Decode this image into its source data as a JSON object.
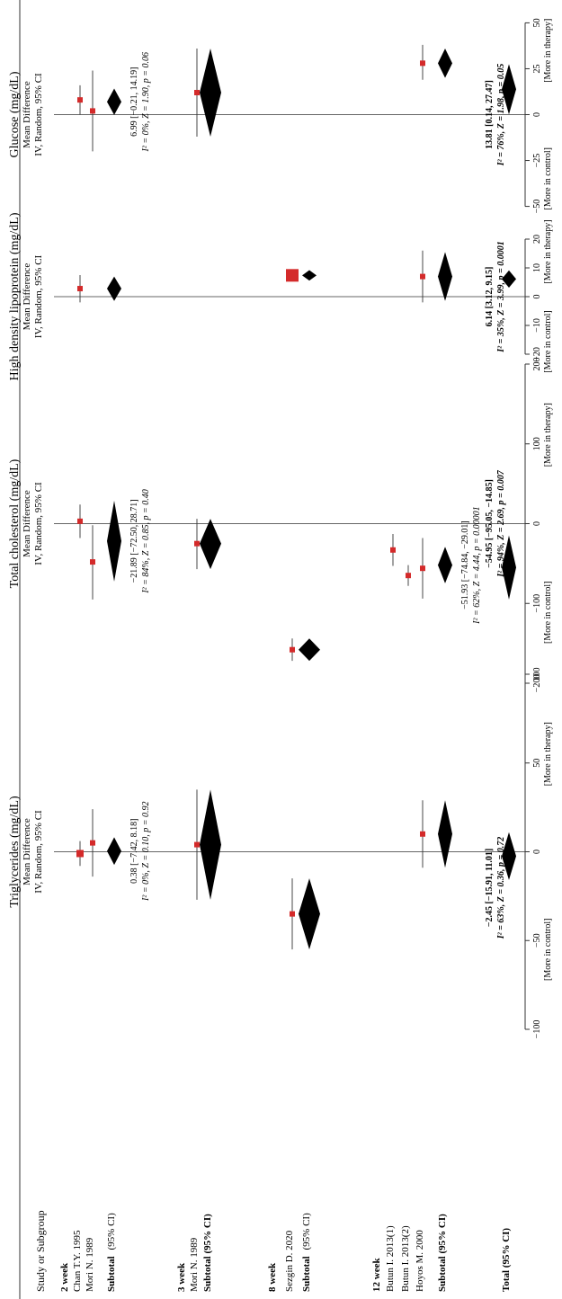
{
  "header": {
    "study_col": "Study or Subgroup"
  },
  "study_labels": {
    "g2_header": "2 week",
    "g2_s1": "Chan T.Y. 1995",
    "g2_s2": "Mori N. 1989",
    "g2_subtotal": "Subtotal",
    "g2_ci": "(95% CI)",
    "g3_header": "3 week",
    "g3_s1": "Mori N. 1989",
    "g3_subtotal": "Subtotal (95% CI)",
    "g8_header": "8 week",
    "g8_s1": "Sezgin D. 2020",
    "g8_subtotal": "Subtotal",
    "g8_ci": "(95% CI)",
    "g12_header": "12 week",
    "g12_s1": "Butun I. 2013(1)",
    "g12_s2": "Butun I. 2013(2)",
    "g12_s3": "Hoyos M. 2000",
    "g12_subtotal": "Subtotal (95% CI)",
    "total": "Total (95% CI)"
  },
  "chart_data": [
    {
      "type": "forest",
      "title": "Triglycerides (mg/dL)",
      "subtitle1": "Mean Difference",
      "subtitle2": "IV, Random, 95% CI",
      "xlim": [
        -100,
        100
      ],
      "ticks": [
        -100,
        -50,
        0,
        50,
        100
      ],
      "tick_labels": [
        "−100",
        "−50",
        "0",
        "50",
        "100"
      ],
      "left_label": "[More in control]",
      "right_label": "[More in therapy]",
      "studies": [
        {
          "group": "2 week",
          "study": "Chan T.Y. 1995",
          "md": -1,
          "lo": -8,
          "hi": 6
        },
        {
          "group": "2 week",
          "study": "Mori N. 1989",
          "md": 5,
          "lo": -14,
          "hi": 24
        },
        {
          "group": "3 week",
          "study": "Mori N. 1989",
          "md": 4,
          "lo": -27,
          "hi": 35
        },
        {
          "group": "8 week",
          "study": "Sezgin D. 2020",
          "md": -35,
          "lo": -55,
          "hi": -15
        },
        {
          "group": "12 week",
          "study": "Hoyos M. 2000",
          "md": 10,
          "lo": -9,
          "hi": 29
        }
      ],
      "subtotals": [
        {
          "group": "2 week",
          "md": 0.38,
          "lo": -7.42,
          "hi": 8.18,
          "ci_text": "0.38 [−7.42, 8.18]",
          "het_text": "I² = 0%, Z = 0.10, p = 0.92"
        },
        {
          "group": "3 week",
          "md": 4,
          "lo": -27,
          "hi": 35
        },
        {
          "group": "8 week",
          "md": -35,
          "lo": -55,
          "hi": -15
        },
        {
          "group": "12 week",
          "md": 10,
          "lo": -9,
          "hi": 29
        }
      ],
      "total": {
        "md": -2.45,
        "lo": -15.91,
        "hi": 11.01,
        "ci_text": "−2.45 [−15.91, 11.01]",
        "het_text": "I² = 63%, Z = 0.36, p = 0.72"
      }
    },
    {
      "type": "forest",
      "title": "Total cholesterol (mg/dL)",
      "subtitle1": "Mean Difference",
      "subtitle2": "IV, Random, 95% CI",
      "xlim": [
        -200,
        200
      ],
      "ticks": [
        -200,
        -100,
        0,
        100,
        200
      ],
      "tick_labels": [
        "−200",
        "−100",
        "0",
        "100",
        "200"
      ],
      "left_label": "[More in control]",
      "right_label": "[More in therapy]",
      "studies": [
        {
          "group": "2 week",
          "study": "Chan T.Y. 1995",
          "md": 3,
          "lo": -18,
          "hi": 24
        },
        {
          "group": "2 week",
          "study": "Mori N. 1989",
          "md": -48,
          "lo": -95,
          "hi": -2
        },
        {
          "group": "3 week",
          "study": "Mori N. 1989",
          "md": -25,
          "lo": -57,
          "hi": 6
        },
        {
          "group": "8 week",
          "study": "Sezgin D. 2020",
          "md": -158,
          "lo": -172,
          "hi": -144
        },
        {
          "group": "12 week",
          "study": "Butun I. 2013(1)",
          "md": -33,
          "lo": -53,
          "hi": -13
        },
        {
          "group": "12 week",
          "study": "Butun I. 2013(2)",
          "md": -65,
          "lo": -78,
          "hi": -52
        },
        {
          "group": "12 week",
          "study": "Hoyos M. 2000",
          "md": -56,
          "lo": -94,
          "hi": -18
        }
      ],
      "subtotals": [
        {
          "group": "2 week",
          "md": -21.89,
          "lo": -72.5,
          "hi": 28.71,
          "ci_text": "−21.89 [−72.50, 28.71]",
          "het_text": "I² = 84%, Z = 0.85, p = 0.40"
        },
        {
          "group": "3 week",
          "md": -25,
          "lo": -57,
          "hi": 6
        },
        {
          "group": "8 week",
          "md": -158,
          "lo": -172,
          "hi": -144
        },
        {
          "group": "12 week",
          "md": -51.93,
          "lo": -74.84,
          "hi": -29.01,
          "ci_text": "−51.93 [−74.84, −29.01]",
          "het_text": "I² = 62%, Z = 4.44, p = 0.00001"
        }
      ],
      "total": {
        "md": -54.95,
        "lo": -95.05,
        "hi": -14.85,
        "ci_text": "−54.95 [−95.05, −14.85]",
        "het_text": "I² = 94%, Z = 2.69, p = 0.007"
      }
    },
    {
      "type": "forest",
      "title": "High density lipoprotein (mg/dL)",
      "subtitle1": "Mean Difference",
      "subtitle2": "IV, Random, 95% CI",
      "xlim": [
        -25,
        25
      ],
      "ticks": [
        -20,
        -10,
        0,
        10,
        20
      ],
      "tick_labels": [
        "−20",
        "−10",
        "0",
        "10",
        "20"
      ],
      "left_label": "[More in control]",
      "right_label": "[More in therapy]",
      "studies": [
        {
          "group": "2 week",
          "study": "Chan T.Y. 1995",
          "md": 2.8,
          "lo": -2,
          "hi": 7.5
        },
        {
          "group": "8 week",
          "study": "Sezgin D. 2020",
          "md": 7.4,
          "lo": 5.6,
          "hi": 9.2
        },
        {
          "group": "12 week",
          "study": "Hoyos M. 2000",
          "md": 7,
          "lo": -2,
          "hi": 16
        }
      ],
      "subtotals": [
        {
          "group": "2 week",
          "md": 2.8,
          "lo": -1.5,
          "hi": 7
        },
        {
          "group": "8 week",
          "md": 7.4,
          "lo": 5.6,
          "hi": 9.2
        },
        {
          "group": "12 week",
          "md": 7,
          "lo": -1.5,
          "hi": 15.5
        }
      ],
      "total": {
        "md": 6.14,
        "lo": 3.12,
        "hi": 9.15,
        "ci_text": "6.14 [3.12, 9.15]",
        "het_text": "I² = 35%, Z = 3.99, p = 0.0001"
      }
    },
    {
      "type": "forest",
      "title": "Glucose (mg/dL)",
      "subtitle1": "Mean Difference",
      "subtitle2": "IV, Random, 95% CI",
      "xlim": [
        -60,
        60
      ],
      "ticks": [
        -50,
        -25,
        0,
        25,
        50
      ],
      "tick_labels": [
        "−50",
        "−25",
        "0",
        "25",
        "50"
      ],
      "left_label": "[More in control]",
      "right_label": "[More in therapy]",
      "studies": [
        {
          "group": "2 week",
          "study": "Chan T.Y. 1995",
          "md": 8,
          "lo": 0,
          "hi": 16
        },
        {
          "group": "2 week",
          "study": "Mori N. 1989",
          "md": 2,
          "lo": -20,
          "hi": 24
        },
        {
          "group": "3 week",
          "study": "Mori N. 1989",
          "md": 12,
          "lo": -12,
          "hi": 36
        },
        {
          "group": "12 week",
          "study": "Hoyos M. 2000",
          "md": 28,
          "lo": 19,
          "hi": 38
        }
      ],
      "subtotals": [
        {
          "group": "2 week",
          "md": 6.99,
          "lo": -0.21,
          "hi": 14.19,
          "ci_text": "6.99 [−0.21, 14.19]",
          "het_text": "I² = 0%, Z = 1.90, p = 0.06"
        },
        {
          "group": "3 week",
          "md": 12,
          "lo": -12,
          "hi": 36
        },
        {
          "group": "12 week",
          "md": 28,
          "lo": 20,
          "hi": 36
        }
      ],
      "total": {
        "md": 13.81,
        "lo": 0.14,
        "hi": 27.47,
        "ci_text": "13.81 [0.14, 27.47]",
        "het_text": "I² = 76%, Z = 1.98, p = 0.05"
      }
    }
  ]
}
